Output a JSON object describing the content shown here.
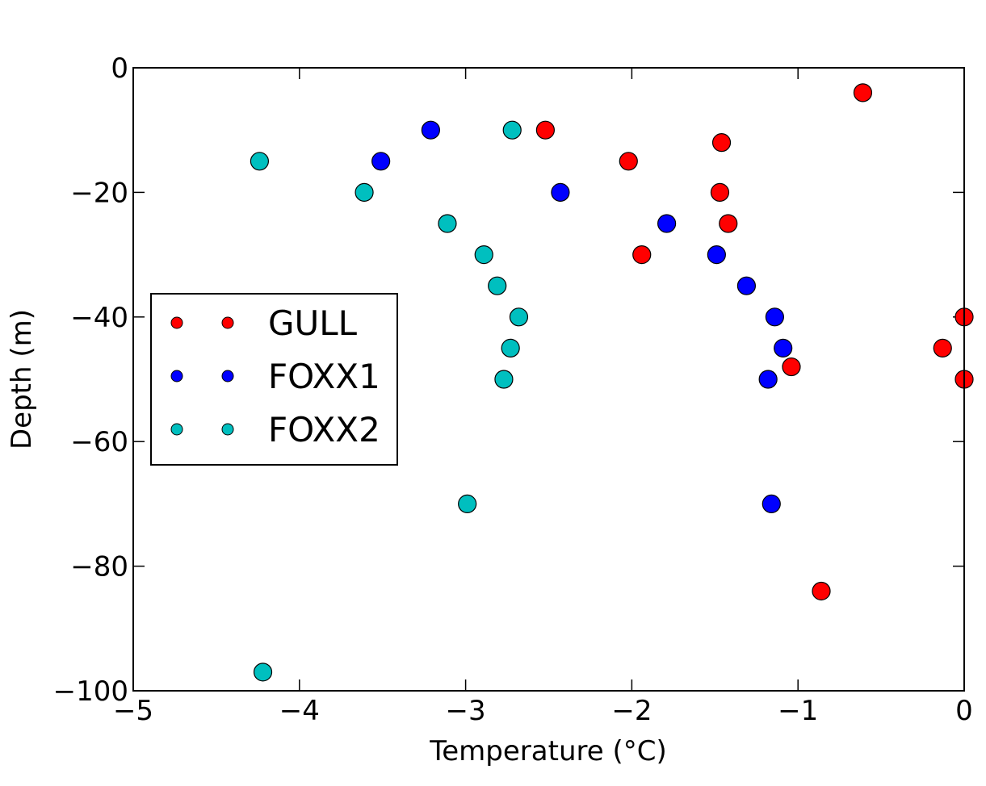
{
  "chart_data": {
    "type": "scatter",
    "xlabel": "Temperature (°C)",
    "ylabel": "Depth (m)",
    "xlim": [
      -5,
      0
    ],
    "ylim": [
      -100,
      0
    ],
    "x_ticks": [
      -5,
      -4,
      -3,
      -2,
      -1,
      0
    ],
    "y_ticks": [
      0,
      -20,
      -40,
      -60,
      -80,
      -100
    ],
    "x_tick_labels": [
      "−5",
      "−4",
      "−3",
      "−2",
      "−1",
      "0"
    ],
    "y_tick_labels": [
      "0",
      "−20",
      "−40",
      "−60",
      "−80",
      "−100"
    ],
    "grid": false,
    "legend_position": "center-left",
    "series": [
      {
        "name": "GULL",
        "color": "#ff0000",
        "points": [
          {
            "x": -0.61,
            "y": -4
          },
          {
            "x": -2.52,
            "y": -10
          },
          {
            "x": -1.46,
            "y": -12
          },
          {
            "x": -2.02,
            "y": -15
          },
          {
            "x": -1.47,
            "y": -20
          },
          {
            "x": -1.42,
            "y": -25
          },
          {
            "x": -1.94,
            "y": -30
          },
          {
            "x": 0.0,
            "y": -40
          },
          {
            "x": -0.13,
            "y": -45
          },
          {
            "x": -1.04,
            "y": -48
          },
          {
            "x": 0.0,
            "y": -50
          },
          {
            "x": -0.86,
            "y": -84
          }
        ]
      },
      {
        "name": "FOXX1",
        "color": "#0000ff",
        "points": [
          {
            "x": -3.21,
            "y": -10
          },
          {
            "x": -3.51,
            "y": -15
          },
          {
            "x": -2.43,
            "y": -20
          },
          {
            "x": -1.79,
            "y": -25
          },
          {
            "x": -1.49,
            "y": -30
          },
          {
            "x": -1.31,
            "y": -35
          },
          {
            "x": -1.14,
            "y": -40
          },
          {
            "x": -1.09,
            "y": -45
          },
          {
            "x": -1.18,
            "y": -50
          },
          {
            "x": -1.16,
            "y": -70
          }
        ]
      },
      {
        "name": "FOXX2",
        "color": "#00bfbf",
        "points": [
          {
            "x": -2.72,
            "y": -10
          },
          {
            "x": -4.24,
            "y": -15
          },
          {
            "x": -3.61,
            "y": -20
          },
          {
            "x": -3.11,
            "y": -25
          },
          {
            "x": -2.89,
            "y": -30
          },
          {
            "x": -2.81,
            "y": -35
          },
          {
            "x": -2.68,
            "y": -40
          },
          {
            "x": -2.73,
            "y": -45
          },
          {
            "x": -2.77,
            "y": -50
          },
          {
            "x": -2.99,
            "y": -70
          },
          {
            "x": -4.22,
            "y": -97
          }
        ]
      }
    ]
  }
}
